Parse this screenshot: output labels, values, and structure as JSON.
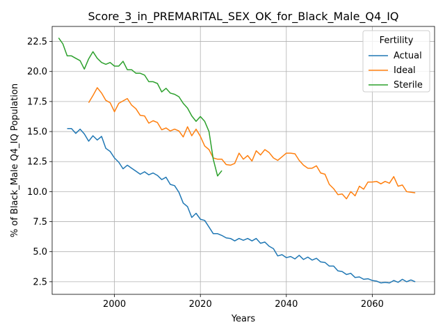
{
  "chart_data": {
    "type": "line",
    "title": "Score_3_in_PREMARITAL_SEX_OK_for_Black_Male_Q4_IQ",
    "xlabel": "Years",
    "ylabel": "% of Black_Male Q4_IQ Population",
    "xlim": [
      1985.5,
      2074.5
    ],
    "ylim": [
      1.45,
      23.75
    ],
    "xticks": [
      2000,
      2020,
      2040,
      2060
    ],
    "yticks": [
      2.5,
      5.0,
      7.5,
      10.0,
      12.5,
      15.0,
      17.5,
      20.0,
      22.5
    ],
    "xtick_labels": [
      "2000",
      "2020",
      "2040",
      "2060"
    ],
    "ytick_labels": [
      "2.5",
      "5.0",
      "7.5",
      "10.0",
      "12.5",
      "15.0",
      "17.5",
      "20.0",
      "22.5"
    ],
    "grid": true,
    "legend": {
      "title": "Fertility",
      "placement": "top-right"
    },
    "series": [
      {
        "name": "Actual",
        "color": "#1f77b4",
        "x": [
          1989,
          1990,
          1991,
          1992,
          1993,
          1994,
          1995,
          1996,
          1997,
          1998,
          1999,
          2000,
          2001,
          2002,
          2003,
          2004,
          2005,
          2006,
          2007,
          2008,
          2009,
          2010,
          2011,
          2012,
          2013,
          2014,
          2015,
          2016,
          2017,
          2018,
          2019,
          2020,
          2021,
          2022,
          2023,
          2024,
          2025,
          2026,
          2027,
          2028,
          2029,
          2030,
          2031,
          2032,
          2033,
          2034,
          2035,
          2036,
          2037,
          2038,
          2039,
          2040,
          2041,
          2042,
          2043,
          2044,
          2045,
          2046,
          2047,
          2048,
          2049,
          2050,
          2051,
          2052,
          2053,
          2054,
          2055,
          2056,
          2057,
          2058,
          2059,
          2060,
          2061,
          2062,
          2063,
          2064,
          2065,
          2066,
          2067,
          2068,
          2069,
          2070
        ],
        "y": [
          15.25,
          15.25,
          14.85,
          15.2,
          14.8,
          14.2,
          14.65,
          14.3,
          14.6,
          13.6,
          13.35,
          12.8,
          12.45,
          11.9,
          12.2,
          11.95,
          11.7,
          11.45,
          11.65,
          11.4,
          11.55,
          11.35,
          11.0,
          11.2,
          10.6,
          10.5,
          9.95,
          9.05,
          8.75,
          7.85,
          8.2,
          7.7,
          7.6,
          7.05,
          6.5,
          6.5,
          6.35,
          6.15,
          6.1,
          5.9,
          6.1,
          5.95,
          6.1,
          5.9,
          6.1,
          5.7,
          5.8,
          5.45,
          5.25,
          4.65,
          4.75,
          4.5,
          4.6,
          4.4,
          4.7,
          4.35,
          4.55,
          4.3,
          4.45,
          4.15,
          4.1,
          3.8,
          3.8,
          3.4,
          3.35,
          3.1,
          3.2,
          2.85,
          2.9,
          2.7,
          2.75,
          2.6,
          2.55,
          2.4,
          2.45,
          2.4,
          2.6,
          2.45,
          2.7,
          2.5,
          2.65,
          2.5
        ]
      },
      {
        "name": "Ideal",
        "color": "#ff7f0e",
        "x": [
          1994,
          1995,
          1996,
          1997,
          1998,
          1999,
          2000,
          2001,
          2002,
          2003,
          2004,
          2005,
          2006,
          2007,
          2008,
          2009,
          2010,
          2011,
          2012,
          2013,
          2014,
          2015,
          2016,
          2017,
          2018,
          2019,
          2020,
          2021,
          2022,
          2023,
          2024,
          2025,
          2026,
          2027,
          2028,
          2029,
          2030,
          2031,
          2032,
          2033,
          2034,
          2035,
          2036,
          2037,
          2038,
          2039,
          2040,
          2041,
          2042,
          2043,
          2044,
          2045,
          2046,
          2047,
          2048,
          2049,
          2050,
          2051,
          2052,
          2053,
          2054,
          2055,
          2056,
          2057,
          2058,
          2059,
          2060,
          2061,
          2062,
          2063,
          2064,
          2065,
          2066,
          2067,
          2068,
          2069,
          2070
        ],
        "y": [
          17.4,
          18.0,
          18.65,
          18.2,
          17.6,
          17.4,
          16.65,
          17.35,
          17.55,
          17.75,
          17.2,
          16.9,
          16.35,
          16.3,
          15.7,
          15.9,
          15.75,
          15.15,
          15.3,
          15.05,
          15.2,
          15.05,
          14.55,
          15.4,
          14.65,
          15.2,
          14.6,
          13.8,
          13.5,
          12.8,
          12.7,
          12.7,
          12.25,
          12.2,
          12.35,
          13.2,
          12.7,
          13.0,
          12.55,
          13.4,
          13.05,
          13.5,
          13.25,
          12.8,
          12.6,
          12.9,
          13.2,
          13.2,
          13.15,
          12.6,
          12.2,
          11.95,
          11.95,
          12.15,
          11.55,
          11.45,
          10.6,
          10.25,
          9.75,
          9.8,
          9.4,
          10.0,
          9.65,
          10.45,
          10.2,
          10.8,
          10.8,
          10.85,
          10.65,
          10.85,
          10.7,
          11.25,
          10.45,
          10.55,
          10.0,
          9.95,
          9.9
        ]
      },
      {
        "name": "Sterile",
        "color": "#2ca02c",
        "x": [
          1987,
          1988,
          1989,
          1990,
          1991,
          1992,
          1993,
          1994,
          1995,
          1996,
          1997,
          1998,
          1999,
          2000,
          2001,
          2002,
          2003,
          2004,
          2005,
          2006,
          2007,
          2008,
          2009,
          2010,
          2011,
          2012,
          2013,
          2014,
          2015,
          2016,
          2017,
          2018,
          2019,
          2020,
          2021,
          2022,
          2023,
          2024,
          2025
        ],
        "y": [
          22.8,
          22.3,
          21.3,
          21.3,
          21.1,
          20.9,
          20.2,
          21.05,
          21.65,
          21.1,
          20.75,
          20.6,
          20.75,
          20.45,
          20.45,
          20.85,
          20.15,
          20.15,
          19.85,
          19.85,
          19.7,
          19.15,
          19.15,
          19.0,
          18.3,
          18.6,
          18.2,
          18.1,
          17.9,
          17.35,
          16.95,
          16.3,
          15.85,
          16.25,
          15.85,
          15.0,
          12.7,
          11.3,
          11.75
        ]
      }
    ]
  }
}
